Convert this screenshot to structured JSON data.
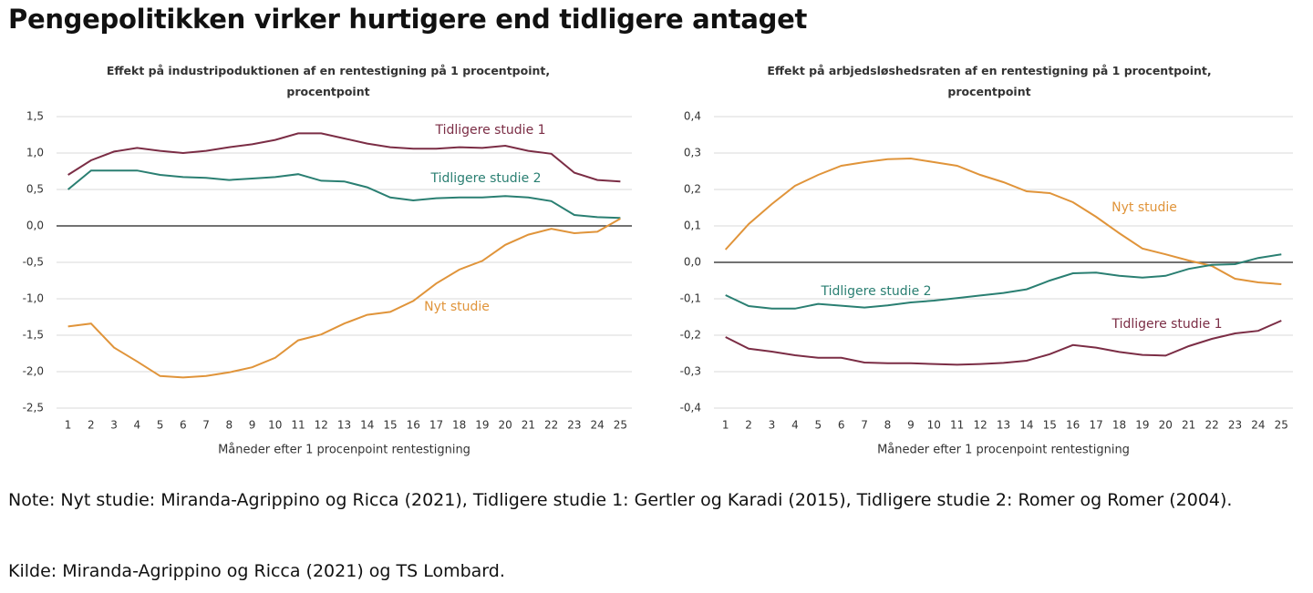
{
  "header": {
    "title": "Pengepolitikken virker hurtigere end tidligere antaget"
  },
  "chart_data": [
    {
      "type": "line",
      "title": "Effekt på industripoduktionen af en rentestigning på 1 procentpoint, procentpoint",
      "x_label": "Måneder efter 1 procenpoint rentestigning",
      "x": [
        1,
        2,
        3,
        4,
        5,
        6,
        7,
        8,
        9,
        10,
        11,
        12,
        13,
        14,
        15,
        16,
        17,
        18,
        19,
        20,
        21,
        22,
        23,
        24,
        25
      ],
      "xlim": [
        0.5,
        25.5
      ],
      "xticks": [
        1,
        2,
        3,
        4,
        5,
        6,
        7,
        8,
        9,
        10,
        11,
        12,
        13,
        14,
        15,
        16,
        17,
        18,
        19,
        20,
        21,
        22,
        23,
        24,
        25
      ],
      "ylim": [
        -2.5,
        1.5
      ],
      "yticks": [
        {
          "value": -2.5,
          "label": "-2,5"
        },
        {
          "value": -2,
          "label": "-2,0"
        },
        {
          "value": -1.5,
          "label": "-1,5"
        },
        {
          "value": -1,
          "label": "-1,0"
        },
        {
          "value": -0.5,
          "label": "-0,5"
        },
        {
          "value": 0,
          "label": "0,0"
        },
        {
          "value": 0.5,
          "label": "0,5"
        },
        {
          "value": 1,
          "label": "1,0"
        },
        {
          "value": 1.5,
          "label": "1,5"
        }
      ],
      "grid": true,
      "series": [
        {
          "name": "Tidligere studie 1",
          "color": "#7b2d45",
          "values": [
            0.7,
            0.9,
            1.02,
            1.07,
            1.03,
            1.0,
            1.03,
            1.08,
            1.12,
            1.18,
            1.27,
            1.27,
            1.2,
            1.13,
            1.08,
            1.06,
            1.06,
            1.08,
            1.07,
            1.1,
            1.03,
            0.99,
            0.73,
            0.63,
            0.61
          ]
        },
        {
          "name": "Tidligere studie 2",
          "color": "#2a7f72",
          "values": [
            0.5,
            0.76,
            0.76,
            0.76,
            0.7,
            0.67,
            0.66,
            0.63,
            0.65,
            0.67,
            0.71,
            0.62,
            0.61,
            0.53,
            0.39,
            0.35,
            0.38,
            0.39,
            0.39,
            0.41,
            0.39,
            0.34,
            0.15,
            0.12,
            0.11
          ]
        },
        {
          "name": "Nyt studie",
          "color": "#e0943a",
          "values": [
            -1.38,
            -1.34,
            -1.67,
            -1.86,
            -2.06,
            -2.08,
            -2.06,
            -2.01,
            -1.94,
            -1.81,
            -1.57,
            -1.49,
            -1.34,
            -1.22,
            -1.18,
            -1.03,
            -0.79,
            -0.6,
            -0.48,
            -0.26,
            -0.12,
            -0.04,
            -0.1,
            -0.08,
            0.1
          ]
        }
      ]
    },
    {
      "type": "line",
      "title": "Effekt på arbjedsløshedsraten af en rentestigning på 1 procentpoint, procentpoint",
      "x_label": "Måneder efter 1 procenpoint rentestigning",
      "x": [
        1,
        2,
        3,
        4,
        5,
        6,
        7,
        8,
        9,
        10,
        11,
        12,
        13,
        14,
        15,
        16,
        17,
        18,
        19,
        20,
        21,
        22,
        23,
        24,
        25
      ],
      "xlim": [
        0.5,
        25.5
      ],
      "xticks": [
        1,
        2,
        3,
        4,
        5,
        6,
        7,
        8,
        9,
        10,
        11,
        12,
        13,
        14,
        15,
        16,
        17,
        18,
        19,
        20,
        21,
        22,
        23,
        24,
        25
      ],
      "ylim": [
        -0.4,
        0.4
      ],
      "yticks": [
        {
          "value": -0.4,
          "label": "-0,4"
        },
        {
          "value": -0.3,
          "label": "-0,3"
        },
        {
          "value": -0.2,
          "label": "-0,2"
        },
        {
          "value": -0.1,
          "label": "-0,1"
        },
        {
          "value": 0,
          "label": "0,0"
        },
        {
          "value": 0.1,
          "label": "0,1"
        },
        {
          "value": 0.2,
          "label": "0,2"
        },
        {
          "value": 0.3,
          "label": "0,3"
        },
        {
          "value": 0.4,
          "label": "0,4"
        }
      ],
      "grid": true,
      "series": [
        {
          "name": "Nyt studie",
          "color": "#e0943a",
          "values": [
            0.035,
            0.105,
            0.16,
            0.21,
            0.24,
            0.265,
            0.275,
            0.283,
            0.285,
            0.275,
            0.265,
            0.24,
            0.22,
            0.195,
            0.19,
            0.165,
            0.125,
            0.08,
            0.038,
            0.022,
            0.005,
            -0.01,
            -0.045,
            -0.055,
            -0.06
          ]
        },
        {
          "name": "Tidligere studie 2",
          "color": "#2a7f72",
          "values": [
            -0.09,
            -0.12,
            -0.127,
            -0.127,
            -0.114,
            -0.119,
            -0.124,
            -0.118,
            -0.11,
            -0.105,
            -0.098,
            -0.091,
            -0.084,
            -0.074,
            -0.05,
            -0.03,
            -0.028,
            -0.037,
            -0.042,
            -0.037,
            -0.018,
            -0.007,
            -0.005,
            0.012,
            0.022
          ]
        },
        {
          "name": "Tidligere studie 1",
          "color": "#7b2d45",
          "values": [
            -0.205,
            -0.237,
            -0.245,
            -0.255,
            -0.262,
            -0.262,
            -0.275,
            -0.277,
            -0.277,
            -0.279,
            -0.281,
            -0.279,
            -0.276,
            -0.27,
            -0.252,
            -0.227,
            -0.234,
            -0.246,
            -0.254,
            -0.256,
            -0.23,
            -0.21,
            -0.195,
            -0.188,
            -0.16
          ]
        }
      ]
    }
  ],
  "notes": {
    "note": "Note: Nyt studie: Miranda-Agrippino og Ricca (2021), Tidligere studie 1: Gertler og Karadi (2015), Tidligere studie 2: Romer og Romer (2004).",
    "source": "Kilde: Miranda-Agrippino og Ricca (2021) og TS Lombard."
  }
}
